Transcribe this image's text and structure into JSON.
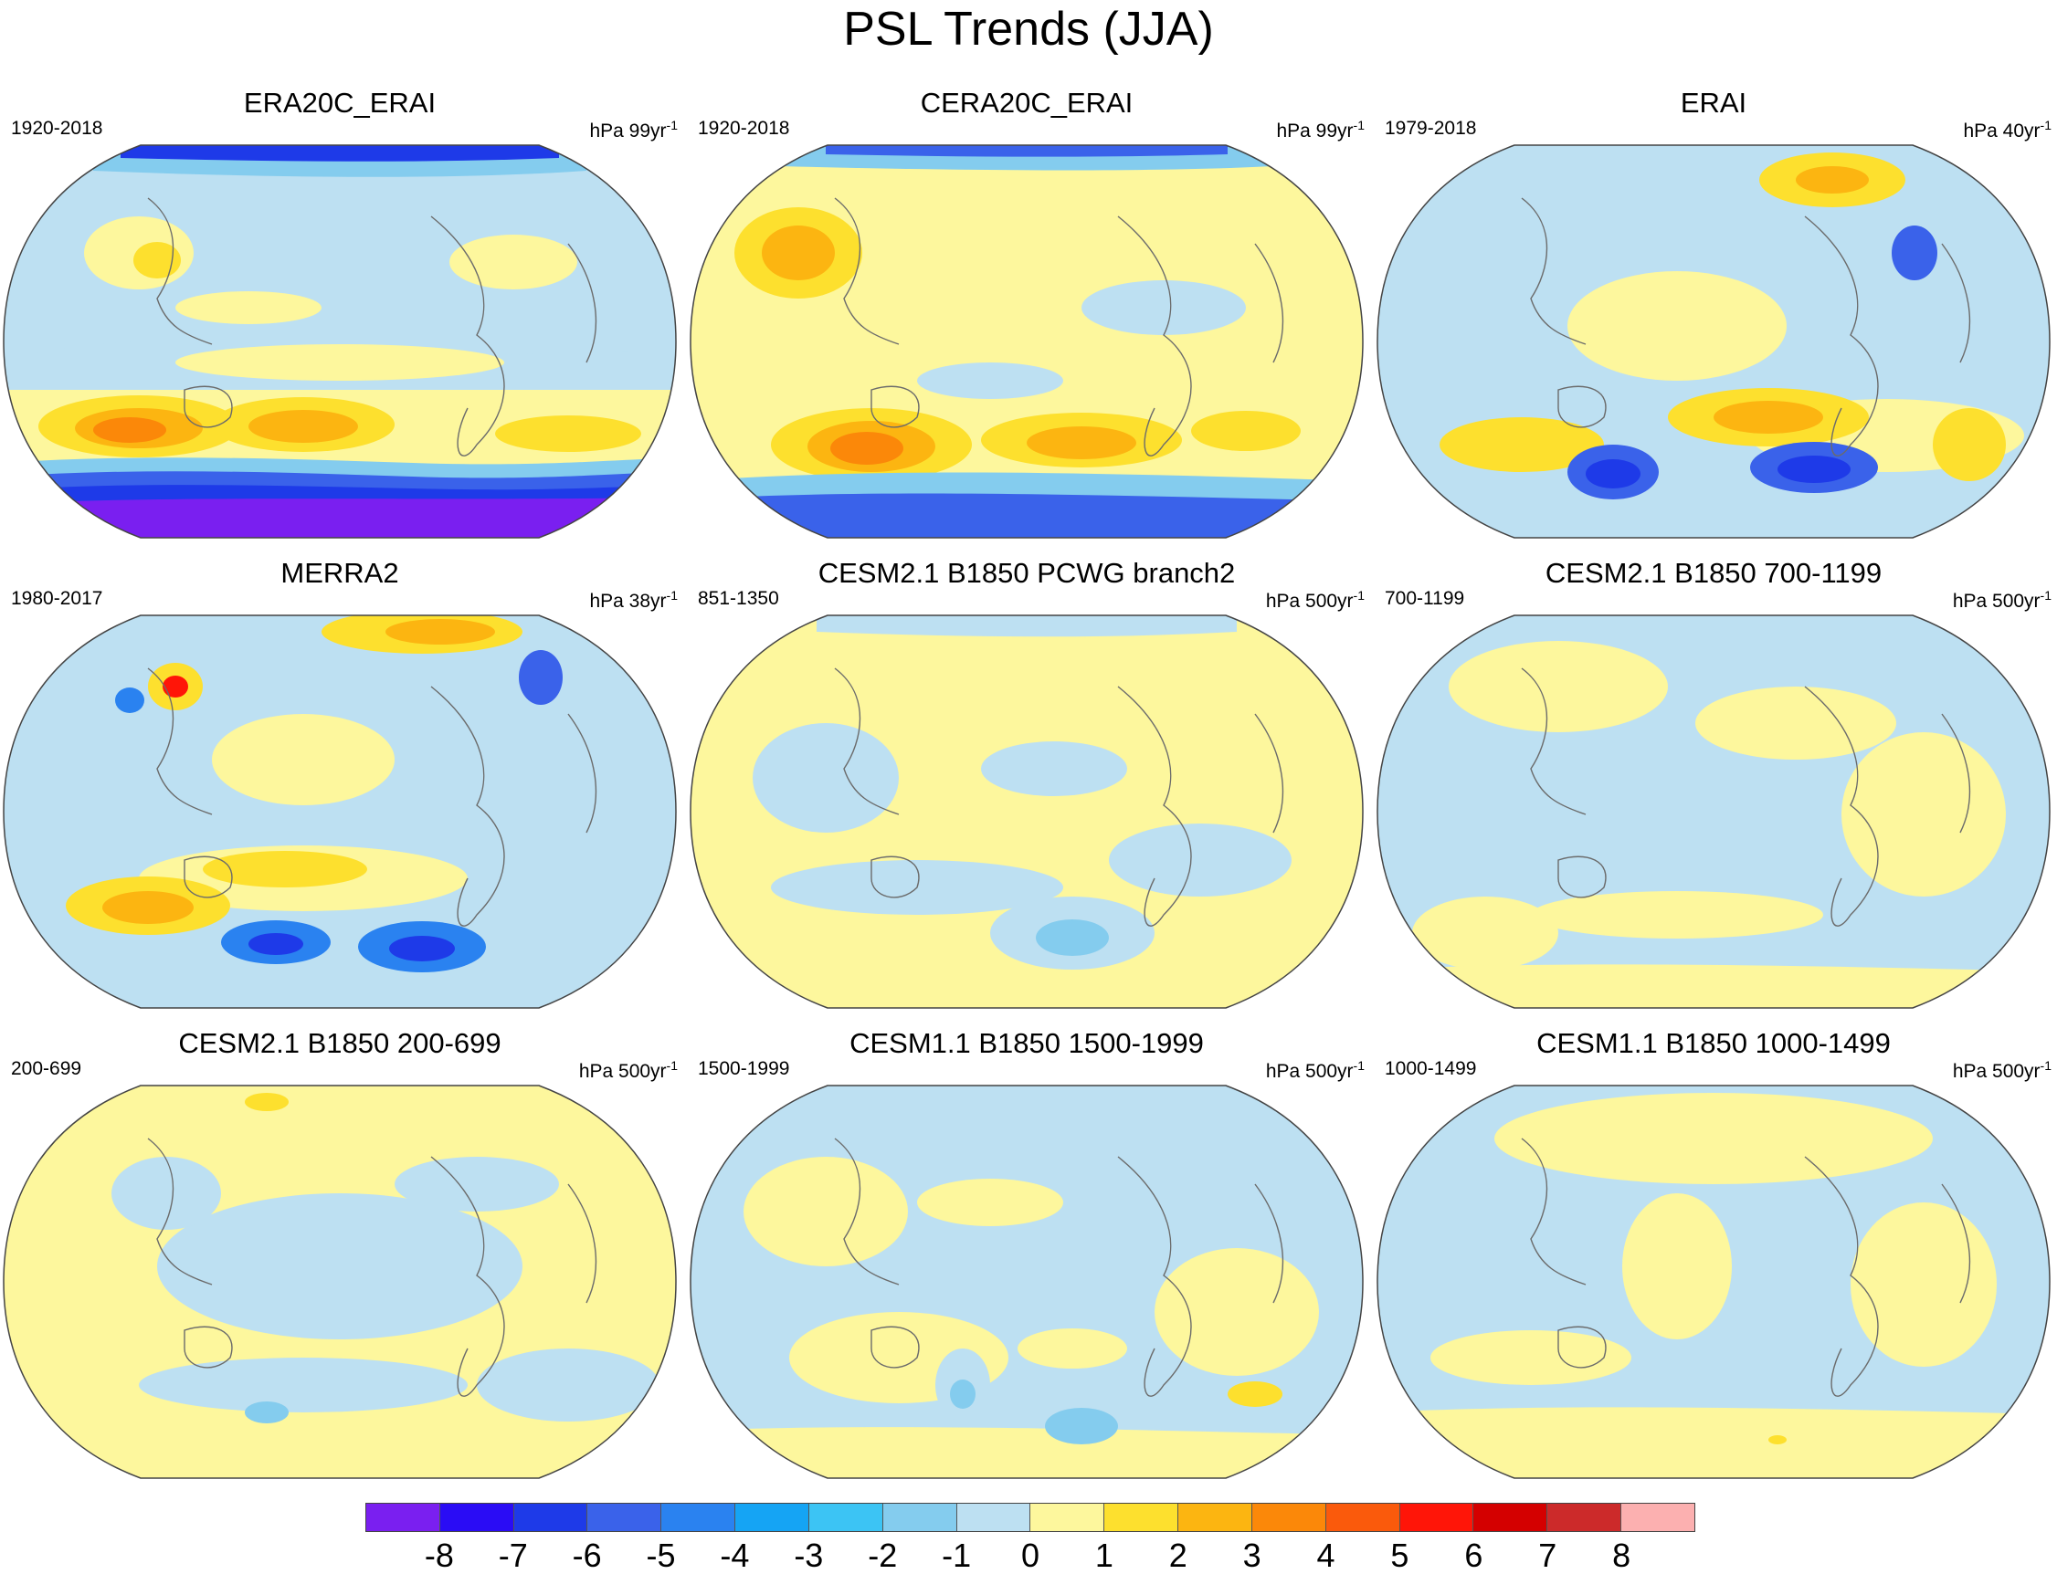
{
  "title": "PSL Trends (JJA)",
  "colors": {
    "ocean": "#bde0f2",
    "coast": "#6b6b6b",
    "levels": [
      "#7a1ff0",
      "#2a0cf5",
      "#1e3ae8",
      "#3a62ea",
      "#2a82f0",
      "#15a4f4",
      "#3cc4f4",
      "#84ccee",
      "#bde0f2",
      "#fdf79d",
      "#fde02e",
      "#fcb511",
      "#fb8809",
      "#fa5a0c",
      "#ff1508",
      "#d40000",
      "#cc2a2a",
      "#fcb0b0"
    ]
  },
  "colorbar_labels": [
    "-8",
    "-7",
    "-6",
    "-5",
    "-4",
    "-3",
    "-2",
    "-1",
    "0",
    "1",
    "2",
    "3",
    "4",
    "5",
    "6",
    "7",
    "8"
  ],
  "panels": [
    {
      "title": "ERA20C_ERAI",
      "period": "1920-2018",
      "units_prefix": "hPa 99yr",
      "units_exp": "-1"
    },
    {
      "title": "CERA20C_ERAI",
      "period": "1920-2018",
      "units_prefix": "hPa 99yr",
      "units_exp": "-1"
    },
    {
      "title": "ERAI",
      "period": "1979-2018",
      "units_prefix": "hPa 40yr",
      "units_exp": "-1"
    },
    {
      "title": "MERRA2",
      "period": "1980-2017",
      "units_prefix": "hPa 38yr",
      "units_exp": "-1"
    },
    {
      "title": "CESM2.1 B1850 PCWG branch2",
      "period": "851-1350",
      "units_prefix": "hPa 500yr",
      "units_exp": "-1"
    },
    {
      "title": "CESM2.1 B1850 700-1199",
      "period": "700-1199",
      "units_prefix": "hPa 500yr",
      "units_exp": "-1"
    },
    {
      "title": "CESM2.1 B1850 200-699",
      "period": "200-699",
      "units_prefix": "hPa 500yr",
      "units_exp": "-1"
    },
    {
      "title": "CESM1.1 B1850 1500-1999",
      "period": "1500-1999",
      "units_prefix": "hPa 500yr",
      "units_exp": "-1"
    },
    {
      "title": "CESM1.1 B1850 1000-1499",
      "period": "1000-1499",
      "units_prefix": "hPa 500yr",
      "units_exp": "-1"
    }
  ]
}
